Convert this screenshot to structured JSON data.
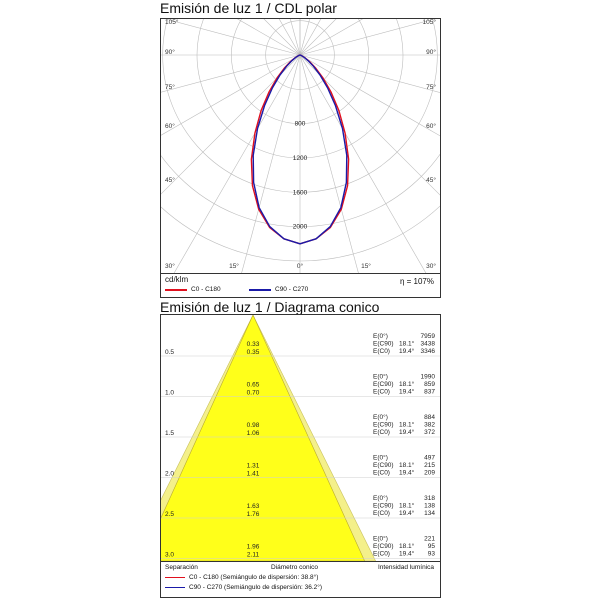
{
  "polar": {
    "title": "Emisión de luz 1 / CDL polar",
    "unit_label": "cd/klm",
    "efficiency": "η = 107%",
    "legend": [
      {
        "label": "C0 - C180",
        "color": "#e0101e"
      },
      {
        "label": "C90 - C270",
        "color": "#1a1aa8"
      }
    ]
  },
  "cone": {
    "title": "Emisión de luz 1 / Diagrama conico",
    "footer": {
      "left": "Separación",
      "middle": "Diámetro conico",
      "right": "Intensidad lumínica"
    },
    "legend": [
      {
        "label": "C0 - C180 (Semiángulo de dispersión: 38.8°)",
        "color": "#e0101e"
      },
      {
        "label": "C90 - C270 (Semiángulo de dispersión: 36.2°)",
        "color": "#1a1aa8"
      }
    ]
  },
  "chart_data": [
    {
      "type": "polar",
      "title": "Emisión de luz 1 / CDL polar",
      "unit": "cd/klm",
      "radial_ticks": [
        800,
        1200,
        1600,
        2000
      ],
      "angle_labels_left": [
        "105°",
        "90°",
        "75°",
        "60°",
        "45°",
        "30°",
        "15°"
      ],
      "angle_labels_right": [
        "105°",
        "90°",
        "75°",
        "60°",
        "45°",
        "30°",
        "15°"
      ],
      "angle_label_bottom": "0°",
      "radial_max": 2400,
      "series": [
        {
          "name": "C0 - C180",
          "color": "#e0101e",
          "angles": [
            0,
            5,
            10,
            15,
            20,
            25,
            30,
            35,
            40,
            45,
            50,
            55,
            60,
            65,
            70,
            75,
            80,
            85,
            90
          ],
          "values": [
            2200,
            2150,
            2040,
            1860,
            1620,
            1340,
            1050,
            790,
            560,
            380,
            240,
            140,
            75,
            35,
            15,
            6,
            2,
            0,
            0
          ]
        },
        {
          "name": "C90 - C270",
          "color": "#1a1aa8",
          "angles": [
            0,
            5,
            10,
            15,
            20,
            25,
            30,
            35,
            40,
            45,
            50,
            55,
            60,
            65,
            70,
            75,
            80,
            85,
            90
          ],
          "values": [
            2200,
            2150,
            2030,
            1840,
            1580,
            1290,
            990,
            720,
            500,
            330,
            205,
            115,
            60,
            28,
            11,
            4,
            1,
            0,
            0
          ]
        }
      ],
      "efficiency": "η = 107%"
    },
    {
      "type": "table",
      "title": "Emisión de luz 1 / Diagrama conico",
      "separations": [
        "0.5",
        "1.0",
        "1.5",
        "2.0",
        "2.5",
        "3.0"
      ],
      "diameters": [
        {
          "c0": "0.33",
          "c90": "0.35"
        },
        {
          "c0": "0.65",
          "c90": "0.70"
        },
        {
          "c0": "0.98",
          "c90": "1.06"
        },
        {
          "c0": "1.31",
          "c90": "1.41"
        },
        {
          "c0": "1.63",
          "c90": "1.76"
        },
        {
          "c0": "1.96",
          "c90": "2.11"
        }
      ],
      "intensity": [
        {
          "e0": "7959",
          "ec90": "3438",
          "ec0": "3346"
        },
        {
          "e0": "1990",
          "ec90": "859",
          "ec0": "837"
        },
        {
          "e0": "884",
          "ec90": "382",
          "ec0": "372"
        },
        {
          "e0": "497",
          "ec90": "215",
          "ec0": "209"
        },
        {
          "e0": "318",
          "ec90": "138",
          "ec0": "134"
        },
        {
          "e0": "221",
          "ec90": "95",
          "ec0": "93"
        }
      ],
      "labels": {
        "e0": "E(0°)",
        "ec90": "E(C90)",
        "ec0": "E(C0)",
        "ang90": "18.1°",
        "ang0": "19.4°"
      },
      "half_angles": {
        "c0": 38.8,
        "c90": 36.2
      }
    }
  ]
}
